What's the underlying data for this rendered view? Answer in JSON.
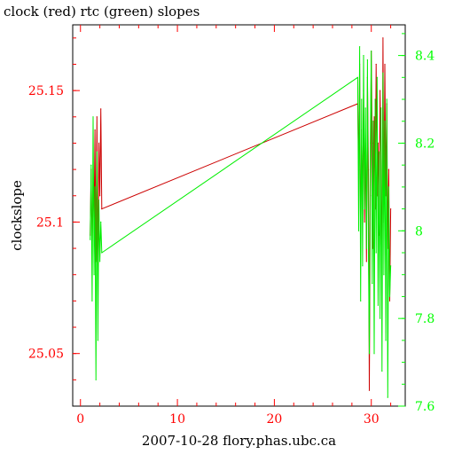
{
  "chart_data": {
    "type": "line",
    "title": "clock (red) rtc (green) slopes",
    "xlabel": "2007-10-28 flory.phas.ubc.ca",
    "ylabel_left": "clockslope",
    "ylabel_right": "",
    "xlim": [
      -0.8,
      33.5
    ],
    "ylim_left": [
      25.03,
      25.175
    ],
    "ylim_right": [
      7.6,
      8.47
    ],
    "x_ticks": [
      0,
      10,
      20,
      30
    ],
    "y_left_ticks": [
      25.05,
      25.1,
      25.15
    ],
    "y_right_ticks": [
      7.6,
      7.8,
      8.0,
      8.2,
      8.4
    ],
    "x_tick_labels": [
      "0",
      "10",
      "20",
      "30"
    ],
    "y_left_tick_labels": [
      "25.05",
      "25.1",
      "25.15"
    ],
    "y_right_tick_labels": [
      "7.6",
      "7.8",
      "8",
      "8.2",
      "8.4"
    ],
    "colors": {
      "left_axis": "#ff0000",
      "right_axis": "#00ff00",
      "frame": "#000000",
      "background": "#ffffff"
    },
    "series": [
      {
        "name": "clock",
        "axis": "left",
        "color": "#cc0000",
        "x": [
          1.0,
          1.1,
          1.2,
          1.3,
          1.4,
          1.5,
          1.6,
          1.7,
          1.8,
          1.9,
          2.0,
          2.1,
          2.2,
          28.6,
          28.7,
          28.8,
          28.9,
          29.0,
          29.1,
          29.2,
          29.3,
          29.4,
          29.5,
          29.6,
          29.7,
          29.8,
          29.9,
          30.0,
          30.1,
          30.2,
          30.3,
          30.4,
          30.5,
          30.6,
          30.7,
          30.8,
          30.9,
          31.0,
          31.1,
          31.2,
          31.3,
          31.4,
          31.5,
          31.6,
          31.7,
          31.8,
          31.9,
          32.0
        ],
        "values": [
          25.095,
          25.12,
          25.09,
          25.115,
          25.1,
          25.135,
          25.085,
          25.14,
          25.08,
          25.13,
          25.11,
          25.143,
          25.105,
          25.145,
          25.12,
          25.16,
          25.09,
          25.135,
          25.105,
          25.15,
          25.1,
          25.13,
          25.085,
          25.155,
          25.12,
          25.036,
          25.11,
          25.165,
          25.13,
          25.09,
          25.14,
          25.105,
          25.16,
          25.11,
          25.13,
          25.095,
          25.15,
          25.12,
          25.08,
          25.17,
          25.1,
          25.16,
          25.11,
          25.145,
          25.09,
          25.12,
          25.07,
          25.105
        ]
      },
      {
        "name": "rtc",
        "axis": "right",
        "color": "#00ee00",
        "x": [
          1.0,
          1.1,
          1.2,
          1.3,
          1.4,
          1.5,
          1.6,
          1.7,
          1.8,
          1.9,
          2.0,
          2.1,
          2.2,
          28.6,
          28.7,
          28.8,
          28.9,
          29.0,
          29.1,
          29.2,
          29.3,
          29.4,
          29.5,
          29.6,
          29.7,
          29.8,
          29.9,
          30.0,
          30.1,
          30.2,
          30.3,
          30.4,
          30.5,
          30.6,
          30.7,
          30.8,
          30.9,
          31.0,
          31.1,
          31.2,
          31.3,
          31.4,
          31.5,
          31.6,
          31.7,
          31.8,
          31.9,
          32.0
        ],
        "values": [
          7.98,
          8.15,
          7.84,
          8.26,
          7.9,
          8.1,
          7.66,
          8.18,
          7.75,
          8.07,
          7.93,
          8.02,
          7.95,
          8.35,
          8.0,
          8.42,
          7.84,
          8.3,
          7.92,
          8.4,
          8.05,
          8.28,
          7.96,
          8.39,
          7.95,
          7.72,
          8.2,
          8.41,
          7.88,
          8.25,
          7.72,
          8.3,
          7.95,
          8.35,
          7.83,
          8.18,
          7.8,
          8.28,
          7.68,
          8.36,
          7.9,
          8.25,
          7.75,
          8.3,
          7.62,
          8.1,
          7.85,
          7.92
        ]
      }
    ]
  }
}
